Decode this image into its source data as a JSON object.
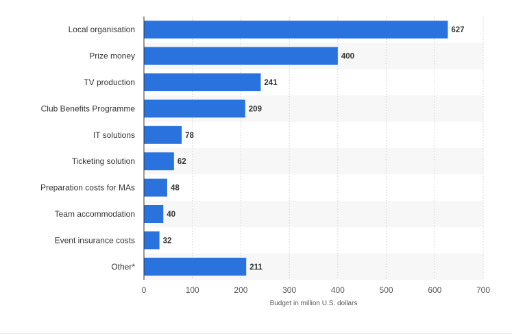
{
  "chart_data": {
    "type": "bar",
    "orientation": "horizontal",
    "categories": [
      "Local organisation",
      "Prize money",
      "TV production",
      "Club Benefits Programme",
      "IT solutions",
      "Ticketing solution",
      "Preparation costs for MAs",
      "Team accommodation",
      "Event insurance costs",
      "Other*"
    ],
    "values": [
      627,
      400,
      241,
      209,
      78,
      62,
      48,
      40,
      32,
      211
    ],
    "xlabel": "Budget in million U.S. dollars",
    "ylabel": "",
    "xlim": [
      0,
      700
    ],
    "ticks": [
      0,
      100,
      200,
      300,
      400,
      500,
      600,
      700
    ],
    "grid": true,
    "colors": {
      "bar": "#2a73de",
      "grid": "#d9d9d9",
      "band": "#f7f7f7",
      "axis": "#333333"
    }
  }
}
